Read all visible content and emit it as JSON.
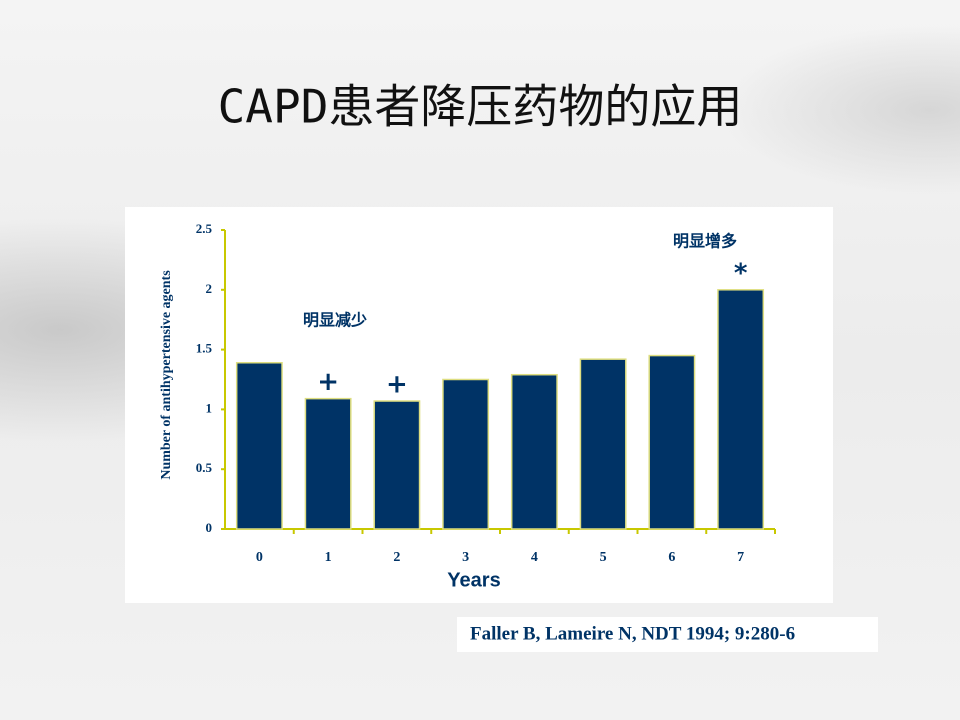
{
  "slide_title": "CAPD患者降压药物的应用",
  "citation": "Faller B, Lameire N, NDT 1994; 9:280-6",
  "chart_data": {
    "type": "bar",
    "y_label": "Number of antihypertensive agents",
    "x_label": "Years",
    "categories": [
      "0",
      "1",
      "2",
      "3",
      "4",
      "5",
      "6",
      "7"
    ],
    "values": [
      1.39,
      1.09,
      1.07,
      1.25,
      1.29,
      1.42,
      1.45,
      2.0
    ],
    "bar_marks": [
      null,
      "+",
      "+",
      null,
      null,
      null,
      null,
      "*"
    ],
    "annotations": [
      "明显减少",
      "明显增多"
    ],
    "color": "#003366",
    "ylim": [
      0,
      2.5
    ],
    "yticks": [
      0,
      0.5,
      1,
      1.5,
      2,
      2.5
    ],
    "grid": false
  }
}
